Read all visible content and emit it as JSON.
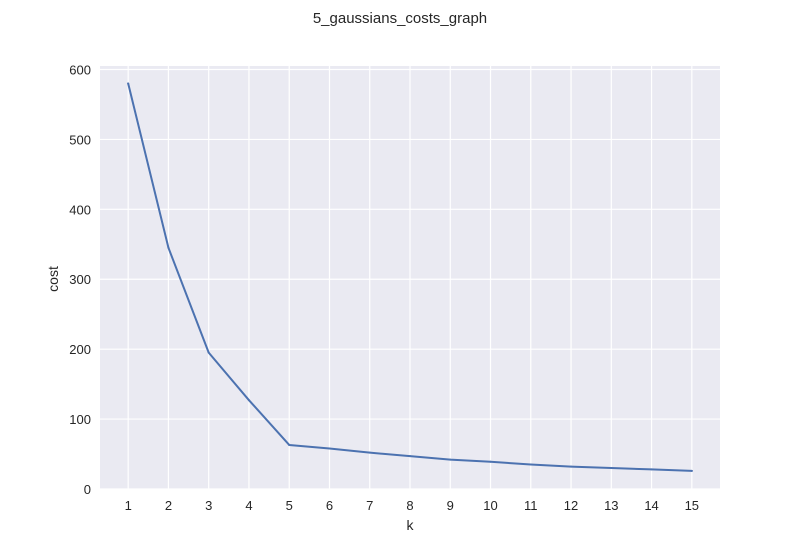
{
  "chart_data": {
    "type": "line",
    "title": "5_gaussians_costs_graph",
    "xlabel": "k",
    "ylabel": "cost",
    "x": [
      1,
      2,
      3,
      4,
      5,
      6,
      7,
      8,
      9,
      10,
      11,
      12,
      13,
      14,
      15
    ],
    "series": [
      {
        "values": [
          580,
          345,
          195,
          127,
          63,
          58,
          52,
          47,
          42,
          39,
          35,
          32,
          30,
          28,
          26
        ],
        "color": "#4c72b0"
      }
    ],
    "xticks": [
      1,
      2,
      3,
      4,
      5,
      6,
      7,
      8,
      9,
      10,
      11,
      12,
      13,
      14,
      15
    ],
    "yticks": [
      0,
      100,
      200,
      300,
      400,
      500,
      600
    ],
    "xlim": [
      0.3,
      15.7
    ],
    "ylim": [
      0,
      605
    ],
    "grid": true,
    "background_color": "#eaeaf2",
    "grid_color": "#ffffff"
  }
}
